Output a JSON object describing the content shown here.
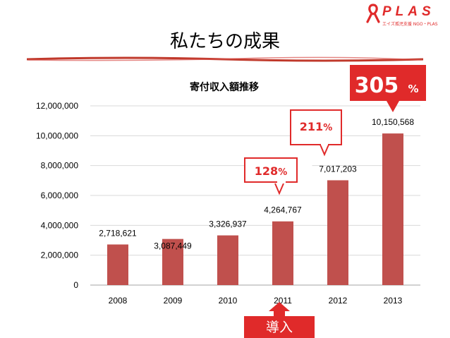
{
  "page_title": "私たちの成果",
  "logo": {
    "name": "PLAS",
    "tagline": "エイズ孤児支援 NGO・PLAS"
  },
  "colors": {
    "bar": "#c0504d",
    "accent": "#e02a2a",
    "gridline": "#d9d9d9"
  },
  "chart_data": {
    "type": "bar",
    "title": "寄付収入額推移",
    "xlabel": "",
    "ylabel": "",
    "categories": [
      "2008",
      "2009",
      "2010",
      "2011",
      "2012",
      "2013"
    ],
    "values": [
      2718621,
      3087449,
      3326937,
      4264767,
      7017203,
      10150568
    ],
    "data_labels": [
      "2,718,621",
      "3,087,449",
      "3,326,937",
      "4,264,767",
      "7,017,203",
      "10,150,568"
    ],
    "ylim": [
      0,
      12000000
    ],
    "y_ticks": [
      0,
      2000000,
      4000000,
      6000000,
      8000000,
      10000000,
      12000000
    ],
    "y_tick_labels": [
      "0",
      "2,000,000",
      "4,000,000",
      "6,000,000",
      "8,000,000",
      "10,000,000",
      "12,000,000"
    ],
    "grid": true,
    "legend": "none",
    "annotations": [
      {
        "text": "128",
        "suffix": "%",
        "category": "2011",
        "style": "outlined-callout"
      },
      {
        "text": "211",
        "suffix": "%",
        "category": "2012",
        "style": "outlined-callout"
      },
      {
        "text": "305",
        "suffix": "%",
        "category": "2013",
        "style": "filled-callout"
      },
      {
        "text": "導入",
        "category": "2011",
        "style": "up-arrow-callout"
      }
    ]
  }
}
